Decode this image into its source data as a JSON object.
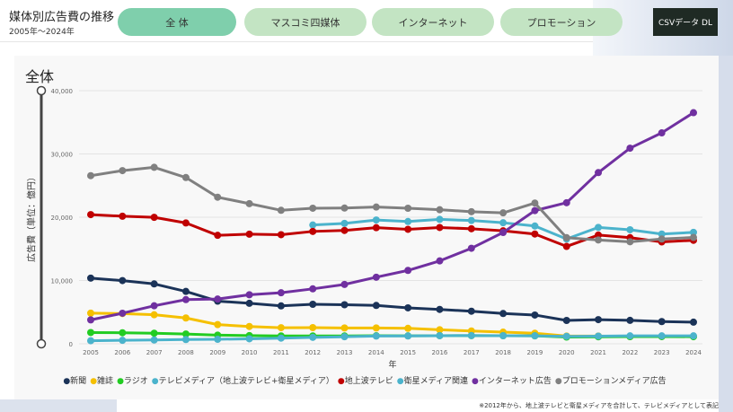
{
  "header": {
    "title": "媒体別広告費の推移",
    "subtitle": "2005年〜2024年"
  },
  "tabs": [
    {
      "label": "全 体",
      "active": true
    },
    {
      "label": "マスコミ四媒体"
    },
    {
      "label": "インターネット"
    },
    {
      "label": "プロモーション"
    }
  ],
  "csv_button": "CSVデータ DL",
  "card_title": "全体",
  "footnote": "※2012年から、地上波テレビと衛星メディアを合計して、テレビメディアとして表記",
  "chart_data": {
    "type": "line",
    "title": "全体",
    "xlabel": "年",
    "ylabel": "広告費（単位：億円）",
    "ylim": [
      0,
      40000
    ],
    "yticks": [
      "0",
      "10,000",
      "20,000",
      "30,000",
      "40,000"
    ],
    "grid": true,
    "legend": "bottom",
    "x": [
      "2005",
      "2006",
      "2007",
      "2008",
      "2009",
      "2010",
      "2011",
      "2012",
      "2013",
      "2014",
      "2015",
      "2016",
      "2017",
      "2018",
      "2019",
      "2020",
      "2021",
      "2022",
      "2023",
      "2024"
    ],
    "series": [
      {
        "name": "新聞",
        "color": "#1b3358",
        "values": [
          10377,
          9986,
          9462,
          8276,
          6739,
          6396,
          5990,
          6242,
          6170,
          6057,
          5679,
          5431,
          5147,
          4784,
          4547,
          3688,
          3815,
          3697,
          3512,
          3417
        ]
      },
      {
        "name": "雑誌",
        "color": "#f5c000",
        "values": [
          4842,
          4777,
          4585,
          4078,
          3034,
          2733,
          2542,
          2551,
          2499,
          2500,
          2443,
          2223,
          2023,
          1841,
          1675,
          1223,
          1224,
          1140,
          1163,
          1179
        ]
      },
      {
        "name": "ラジオ",
        "color": "#22cc22",
        "values": [
          1778,
          1744,
          1671,
          1549,
          1370,
          1299,
          1247,
          1246,
          1243,
          1272,
          1254,
          1285,
          1290,
          1278,
          1260,
          1066,
          1106,
          1129,
          1139,
          1121
        ]
      },
      {
        "name": "テレビメディア（地上波テレビ+衛星メディア）",
        "color": "#4bb3cc",
        "values": [
          null,
          null,
          null,
          null,
          null,
          null,
          null,
          18770,
          19023,
          19564,
          19323,
          19657,
          19478,
          19123,
          18612,
          16559,
          18393,
          18019,
          17347,
          17605
        ]
      },
      {
        "name": "地上波テレビ",
        "color": "#c00000",
        "values": [
          20411,
          20161,
          19981,
          19092,
          17139,
          17321,
          17237,
          17757,
          17913,
          18347,
          18088,
          18374,
          18178,
          17848,
          17345,
          15386,
          17184,
          16768,
          16095,
          16351
        ]
      },
      {
        "name": "衛星メディア関連",
        "color": "#4bb3cc",
        "values": [
          487,
          544,
          603,
          676,
          709,
          784,
          891,
          1013,
          1110,
          1217,
          1235,
          1283,
          1300,
          1275,
          1267,
          1173,
          1209,
          1251,
          1252,
          1254
        ]
      },
      {
        "name": "インターネット広告",
        "color": "#7030a0",
        "values": [
          3777,
          4826,
          6003,
          6983,
          7069,
          7747,
          8062,
          8680,
          9381,
          10519,
          11594,
          13100,
          15094,
          17589,
          21048,
          22290,
          27052,
          30912,
          33330,
          36517
        ]
      },
      {
        "name": "プロモーションメディア広告",
        "color": "#808080",
        "values": [
          26563,
          27365,
          27886,
          26272,
          23162,
          22147,
          21092,
          21424,
          21446,
          21610,
          21417,
          21184,
          20875,
          20685,
          22239,
          16768,
          16408,
          16124,
          16557,
          16802
        ]
      }
    ]
  }
}
